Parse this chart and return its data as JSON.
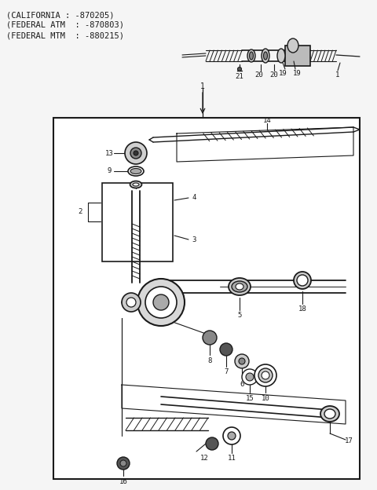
{
  "bg_color": "#f5f5f5",
  "line_color": "#1a1a1a",
  "text_color": "#1a1a1a",
  "fig_width": 4.8,
  "fig_height": 6.24,
  "dpi": 100,
  "title_lines": [
    "(CALIFORNIA : -870205)",
    "(FEDERAL ATM  : -870803)",
    "(FEDERAL MTM  : -880215)"
  ]
}
